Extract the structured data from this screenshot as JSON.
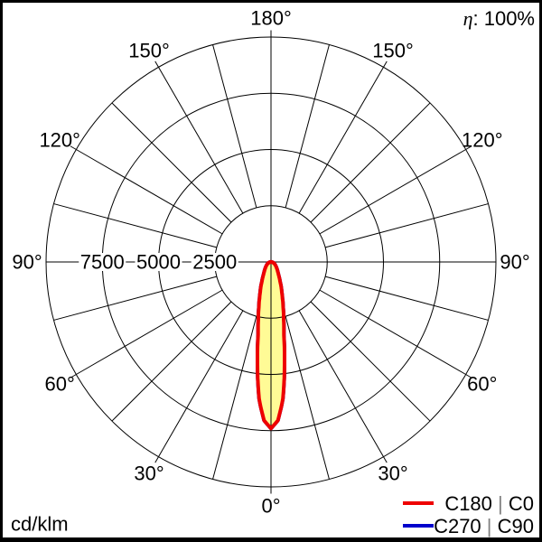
{
  "header": {
    "efficiency_symbol": "η",
    "efficiency_value": ": 100%"
  },
  "footer": {
    "unit_label": "cd/klm"
  },
  "legend": {
    "items": [
      {
        "color": "#ee0000",
        "parts": [
          "C180 ",
          "|",
          " C0"
        ]
      },
      {
        "color": "#0000cc",
        "parts": [
          "C270 ",
          "|",
          " C90"
        ]
      }
    ]
  },
  "colors": {
    "curve_c0_c180": "#ee0000",
    "curve_c90_c270": "#0000cc",
    "beam_fill": "#fffb96",
    "grid": "#000000",
    "frame": "#000000",
    "background": "#ffffff"
  },
  "chart_data": {
    "type": "polar-photometric",
    "title": "Luminous intensity distribution (polar)",
    "unit": "cd/klm",
    "efficiency_percent": 100,
    "rmax": 10000,
    "ring_values": [
      2500,
      5000,
      7500,
      10000
    ],
    "ring_labels": [
      {
        "value": 7500,
        "label": "7500"
      },
      {
        "value": 5000,
        "label": "5000"
      },
      {
        "value": 2500,
        "label": "2500"
      }
    ],
    "grid_step_deg": 15,
    "label_step_deg": 30,
    "angle_ticks": [
      {
        "deg": 0,
        "label": "0°"
      },
      {
        "deg": 30,
        "label": "30°"
      },
      {
        "deg": 60,
        "label": "60°"
      },
      {
        "deg": 90,
        "label": "90°"
      },
      {
        "deg": 120,
        "label": "120°"
      },
      {
        "deg": 150,
        "label": "150°"
      },
      {
        "deg": 180,
        "label": "180°"
      }
    ],
    "series": [
      {
        "name": "C270 | C90",
        "color": "#0000cc",
        "hidden_behind": "C180 | C0",
        "symmetric": true,
        "gamma_deg": [
          0,
          2.5,
          5,
          7.5,
          10,
          12.5,
          15,
          17.5,
          20,
          25,
          30,
          35,
          40,
          45,
          50,
          55,
          60,
          65,
          70,
          75,
          80,
          85,
          90,
          120,
          150,
          180
        ],
        "values_cd_klm": [
          7400,
          7050,
          6100,
          4600,
          3300,
          2600,
          2100,
          1700,
          1400,
          950,
          680,
          520,
          420,
          340,
          280,
          230,
          190,
          155,
          120,
          90,
          60,
          40,
          20,
          5,
          0,
          0
        ]
      },
      {
        "name": "C180 | C0",
        "color": "#ee0000",
        "fill": "#fffb96",
        "symmetric": true,
        "gamma_deg": [
          0,
          2.5,
          5,
          7.5,
          10,
          12.5,
          15,
          17.5,
          20,
          25,
          30,
          35,
          40,
          45,
          50,
          55,
          60,
          65,
          70,
          75,
          80,
          85,
          90,
          120,
          150,
          180
        ],
        "values_cd_klm": [
          7400,
          7050,
          6100,
          4600,
          3300,
          2600,
          2100,
          1700,
          1400,
          950,
          680,
          520,
          420,
          340,
          280,
          230,
          190,
          155,
          120,
          90,
          60,
          40,
          20,
          5,
          0,
          0
        ]
      }
    ]
  }
}
